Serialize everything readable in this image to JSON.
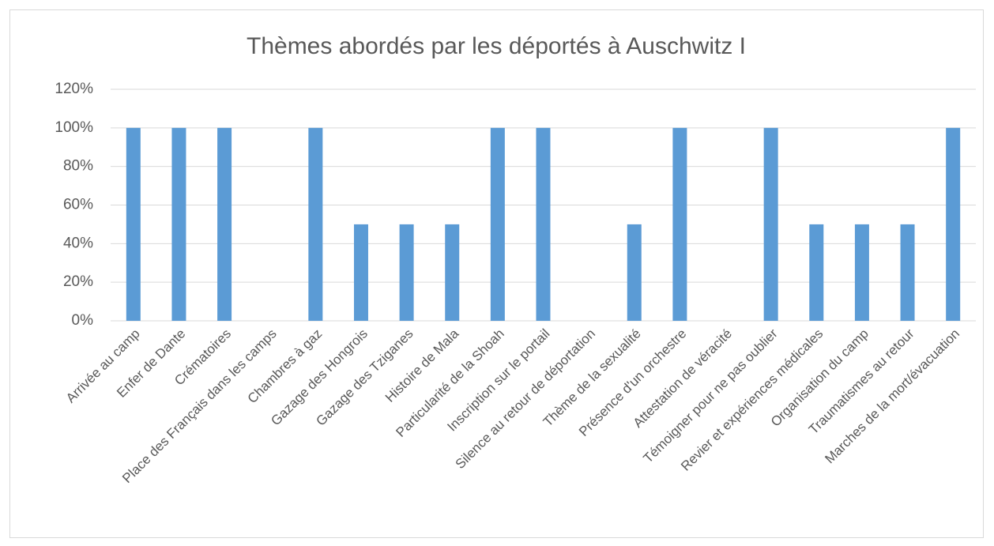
{
  "chart_data": {
    "type": "bar",
    "title": "Thèmes abordés par les déportés à Auschwitz I",
    "categories": [
      "Arrivée au camp",
      "Enfer de Dante",
      "Crématoires",
      "Place des Français dans les camps",
      "Chambres à gaz",
      "Gazage des Hongrois",
      "Gazage des Tziganes",
      "Histoire de Mala",
      "Particularité de la Shoah",
      "Inscription sur le portail",
      "Silence au retour de déportation",
      "Thème de la sexualité",
      "Présence d'un orchestre",
      "Attestation de véracité",
      "Témoigner pour ne pas oublier",
      "Revier et expériences médicales",
      "Organisation du camp",
      "Traumatismes au retour",
      "Marches de la mort/évacuation"
    ],
    "values": [
      100,
      100,
      100,
      0,
      100,
      50,
      50,
      50,
      100,
      100,
      0,
      50,
      100,
      0,
      100,
      50,
      50,
      50,
      100
    ],
    "color": "#5b9bd5",
    "ylim": [
      0,
      120
    ],
    "yticks": [
      {
        "value": 0,
        "label": "0%"
      },
      {
        "value": 20,
        "label": "20%"
      },
      {
        "value": 40,
        "label": "40%"
      },
      {
        "value": 60,
        "label": "60%"
      },
      {
        "value": 80,
        "label": "80%"
      },
      {
        "value": 100,
        "label": "100%"
      },
      {
        "value": 120,
        "label": "120%"
      }
    ],
    "grid": true
  }
}
